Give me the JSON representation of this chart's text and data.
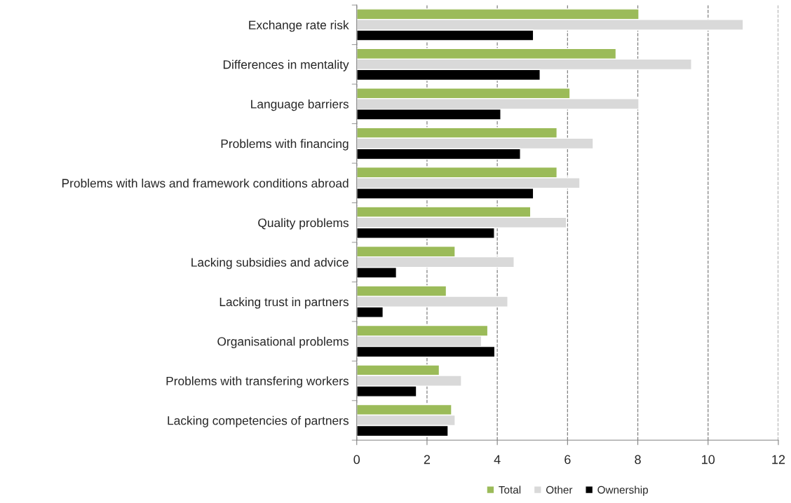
{
  "chart_data": {
    "type": "bar",
    "orientation": "horizontal",
    "categories": [
      "Exchange rate risk",
      "Differences in mentality",
      "Language barriers",
      "Problems with financing",
      "Problems with laws and framework conditions abroad",
      "Quality problems",
      "Lacking subsidies and advice",
      "Lacking trust in partners",
      "Organisational problems",
      "Problems with transfering workers",
      "Lacking competencies of partners"
    ],
    "series": [
      {
        "name": "Total",
        "color": "#9bbb59",
        "values": [
          8.03,
          7.38,
          6.07,
          5.7,
          5.7,
          4.95,
          2.8,
          2.55,
          3.73,
          2.35,
          2.7
        ]
      },
      {
        "name": "Other",
        "color": "#d9d9d9",
        "values": [
          11.0,
          9.53,
          8.03,
          6.73,
          6.35,
          5.97,
          4.48,
          4.3,
          3.55,
          2.98,
          2.8
        ]
      },
      {
        "name": "Ownership",
        "color": "#000000",
        "values": [
          5.03,
          5.22,
          4.1,
          4.66,
          5.03,
          3.92,
          1.13,
          0.75,
          3.93,
          1.7,
          2.6
        ]
      }
    ],
    "xlim": [
      0,
      12
    ],
    "xticks": [
      0,
      2,
      4,
      6,
      8,
      10,
      12
    ],
    "grid": "x",
    "legend": "bottom"
  }
}
